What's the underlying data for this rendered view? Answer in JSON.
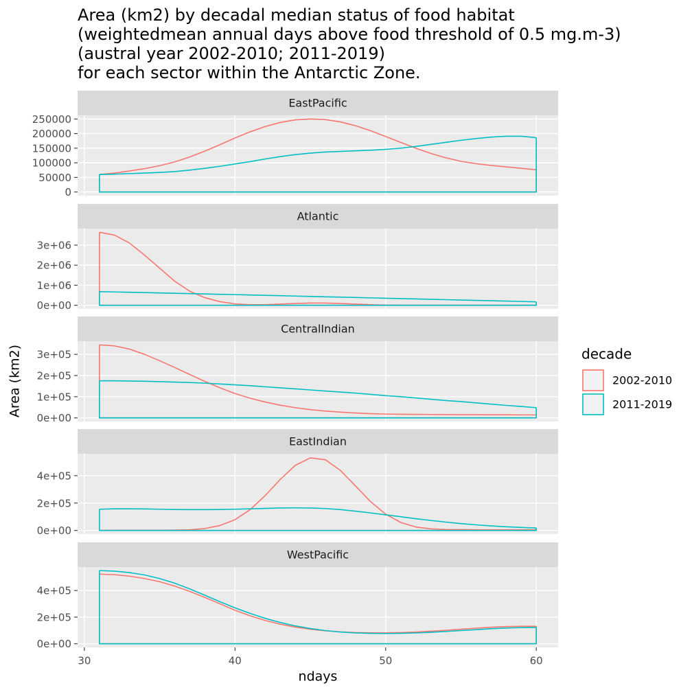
{
  "title": [
    "Area (km2) by decadal median status of food habitat",
    "(weightedmean annual days above food threshold of 0.5 mg.m-3)",
    "(austral year 2002-2010; 2011-2019)",
    "for each sector within the Antarctic Zone."
  ],
  "x_label": "ndays",
  "y_label": "Area (km2)",
  "legend_title": "decade",
  "chart_data": [
    {
      "type": "area",
      "panel_title": "EastPacific",
      "x": [
        31,
        32,
        33,
        34,
        35,
        36,
        37,
        38,
        39,
        40,
        41,
        42,
        43,
        44,
        45,
        46,
        47,
        48,
        49,
        50,
        51,
        52,
        53,
        54,
        55,
        56,
        57,
        58,
        59,
        60
      ],
      "xlim": [
        29.55,
        61.45
      ],
      "xticks": [
        30,
        40,
        50,
        60
      ],
      "ylim": [
        -12500,
        262500
      ],
      "yticks": [
        0,
        50000,
        100000,
        150000,
        200000,
        250000
      ],
      "series": [
        {
          "name": "2002-2010",
          "color": "#F8766D",
          "values": [
            60000,
            65000,
            72000,
            80000,
            90000,
            103000,
            120000,
            140000,
            162000,
            185000,
            206000,
            224000,
            238000,
            247000,
            250000,
            248000,
            240000,
            227000,
            210000,
            190000,
            170000,
            150000,
            132000,
            117000,
            105000,
            97000,
            91000,
            86000,
            81000,
            76000
          ]
        },
        {
          "name": "2011-2019",
          "color": "#00BFC4",
          "values": [
            60000,
            61000,
            63000,
            65000,
            67000,
            70000,
            75000,
            81000,
            88000,
            96000,
            104000,
            113000,
            121000,
            128000,
            133000,
            137000,
            139000,
            141000,
            143000,
            146000,
            150000,
            156000,
            163000,
            170000,
            177000,
            183000,
            188000,
            191000,
            191000,
            186000
          ]
        }
      ]
    },
    {
      "type": "area",
      "panel_title": "Atlantic",
      "x": [
        31,
        32,
        33,
        34,
        35,
        36,
        37,
        38,
        39,
        40,
        41,
        42,
        43,
        44,
        45,
        46,
        47,
        48,
        49,
        50,
        51,
        52,
        53,
        54,
        55,
        56,
        57,
        58,
        59,
        60
      ],
      "xlim": [
        29.55,
        61.45
      ],
      "xticks": [
        30,
        40,
        50,
        60
      ],
      "ylim": [
        -182000,
        3822000
      ],
      "yticks": [
        {
          "value": 0,
          "label": "0e+00"
        },
        {
          "value": 1000000,
          "label": "1e+06"
        },
        {
          "value": 2000000,
          "label": "2e+06"
        },
        {
          "value": 3000000,
          "label": "3e+06"
        }
      ],
      "series": [
        {
          "name": "2002-2010",
          "color": "#F8766D",
          "values": [
            3640000,
            3500000,
            3100000,
            2500000,
            1850000,
            1200000,
            700000,
            380000,
            180000,
            70000,
            30000,
            30000,
            60000,
            90000,
            110000,
            110000,
            90000,
            60000,
            30000,
            10000,
            5000,
            5000,
            5000,
            5000,
            5000,
            5000,
            5000,
            5000,
            5000,
            5000
          ]
        },
        {
          "name": "2011-2019",
          "color": "#00BFC4",
          "values": [
            680000,
            665000,
            650000,
            634000,
            617000,
            600000,
            583000,
            566000,
            549000,
            532000,
            514000,
            496000,
            478000,
            460000,
            442000,
            424000,
            406000,
            388000,
            370000,
            352000,
            334000,
            316000,
            298000,
            280000,
            262000,
            244000,
            226000,
            208000,
            190000,
            172000
          ]
        }
      ]
    },
    {
      "type": "area",
      "panel_title": "CentralIndian",
      "x": [
        31,
        32,
        33,
        34,
        35,
        36,
        37,
        38,
        39,
        40,
        41,
        42,
        43,
        44,
        45,
        46,
        47,
        48,
        49,
        50,
        51,
        52,
        53,
        54,
        55,
        56,
        57,
        58,
        59,
        60
      ],
      "xlim": [
        29.55,
        61.45
      ],
      "xticks": [
        30,
        40,
        50,
        60
      ],
      "ylim": [
        -17250,
        362250
      ],
      "yticks": [
        {
          "value": 0,
          "label": "0e+00"
        },
        {
          "value": 100000,
          "label": "1e+05"
        },
        {
          "value": 200000,
          "label": "2e+05"
        },
        {
          "value": 300000,
          "label": "3e+05"
        }
      ],
      "series": [
        {
          "name": "2002-2010",
          "color": "#F8766D",
          "values": [
            345000,
            340000,
            325000,
            300000,
            270000,
            238000,
            205000,
            172000,
            142000,
            115000,
            93000,
            75000,
            60000,
            48000,
            39000,
            32000,
            27000,
            23000,
            20000,
            18000,
            17000,
            16500,
            16000,
            15500,
            15000,
            15000,
            14500,
            14500,
            14000,
            14000
          ]
        },
        {
          "name": "2011-2019",
          "color": "#00BFC4",
          "values": [
            175000,
            175000,
            174000,
            173000,
            171000,
            169000,
            167000,
            164000,
            160000,
            156000,
            152000,
            147000,
            142000,
            137000,
            132000,
            127000,
            122000,
            117000,
            111000,
            105000,
            100000,
            94000,
            88000,
            82000,
            77000,
            71000,
            65000,
            59000,
            54000,
            48000
          ]
        }
      ]
    },
    {
      "type": "area",
      "panel_title": "EastIndian",
      "x": [
        31,
        32,
        33,
        34,
        35,
        36,
        37,
        38,
        39,
        40,
        41,
        42,
        43,
        44,
        45,
        46,
        47,
        48,
        49,
        50,
        51,
        52,
        53,
        54,
        55,
        56,
        57,
        58,
        59,
        60
      ],
      "xlim": [
        29.55,
        61.45
      ],
      "xticks": [
        30,
        40,
        50,
        60
      ],
      "ylim": [
        -26650,
        559650
      ],
      "yticks": [
        {
          "value": 0,
          "label": "0e+00"
        },
        {
          "value": 200000,
          "label": "2e+05"
        },
        {
          "value": 400000,
          "label": "4e+05"
        }
      ],
      "series": [
        {
          "name": "2002-2010",
          "color": "#F8766D",
          "values": [
            500,
            1000,
            1000,
            1000,
            1500,
            2500,
            5000,
            14100,
            35800,
            78800,
            151600,
            254000,
            372000,
            475000,
            530000,
            516000,
            438000,
            325000,
            210000,
            119000,
            58500,
            25200,
            12000,
            7000,
            6000,
            5000,
            5000,
            5000,
            5000,
            5000
          ]
        },
        {
          "name": "2011-2019",
          "color": "#00BFC4",
          "values": [
            155000,
            158000,
            158000,
            157000,
            155000,
            153000,
            152000,
            152000,
            153000,
            155000,
            158000,
            161000,
            164000,
            165000,
            164000,
            160000,
            152000,
            141000,
            128000,
            114000,
            100000,
            86000,
            73000,
            61000,
            50000,
            41000,
            33000,
            27000,
            22000,
            18000
          ]
        }
      ]
    },
    {
      "type": "area",
      "panel_title": "WestPacific",
      "x": [
        31,
        32,
        33,
        34,
        35,
        36,
        37,
        38,
        39,
        40,
        41,
        42,
        43,
        44,
        45,
        46,
        47,
        48,
        49,
        50,
        51,
        52,
        53,
        54,
        55,
        56,
        57,
        58,
        59,
        60
      ],
      "xlim": [
        29.55,
        61.45
      ],
      "xticks": [
        30,
        40,
        50,
        60
      ],
      "ylim": [
        -27450,
        576450
      ],
      "yticks": [
        {
          "value": 0,
          "label": "0e+00"
        },
        {
          "value": 200000,
          "label": "2e+05"
        },
        {
          "value": 400000,
          "label": "4e+05"
        }
      ],
      "series": [
        {
          "name": "2002-2010",
          "color": "#F8766D",
          "values": [
            523000,
            519000,
            508000,
            490000,
            466000,
            433000,
            393000,
            348000,
            300000,
            252000,
            210000,
            175000,
            147000,
            125000,
            109000,
            97000,
            89000,
            84000,
            82000,
            82000,
            84000,
            88000,
            94000,
            101000,
            109000,
            117000,
            124000,
            129000,
            131000,
            131000
          ]
        },
        {
          "name": "2011-2019",
          "color": "#00BFC4",
          "values": [
            550000,
            546000,
            535000,
            517000,
            490000,
            455000,
            412000,
            365000,
            316000,
            270000,
            228000,
            191000,
            160000,
            134000,
            114000,
            99000,
            88000,
            81000,
            78000,
            77000,
            78000,
            81000,
            86000,
            92000,
            99000,
            106000,
            113000,
            118000,
            121000,
            122000
          ]
        }
      ]
    }
  ]
}
